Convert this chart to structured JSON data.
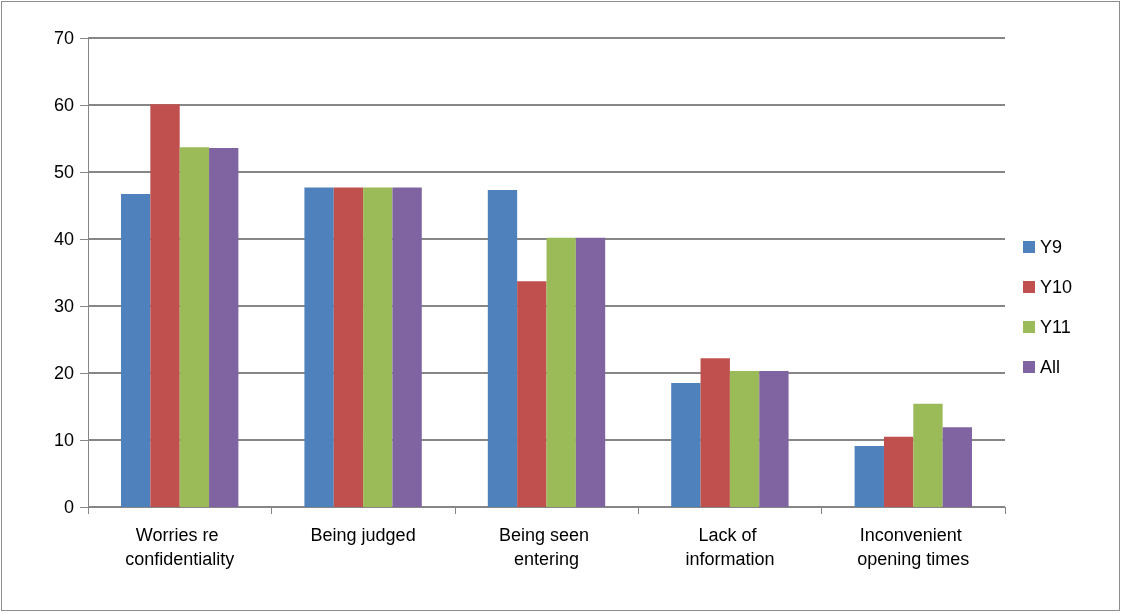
{
  "chart_data": {
    "type": "bar",
    "categories": [
      "Worries re confidentiality",
      "Being judged",
      "Being seen entering",
      "Lack of information",
      "Inconvenient opening times"
    ],
    "series": [
      {
        "name": "Y9",
        "color": "#4f81bd",
        "values": [
          46.7,
          47.7,
          47.3,
          18.5,
          9.1
        ]
      },
      {
        "name": "Y10",
        "color": "#c0504d",
        "values": [
          60.1,
          47.7,
          33.7,
          22.2,
          10.5
        ]
      },
      {
        "name": "Y11",
        "color": "#9bbb59",
        "values": [
          53.7,
          47.7,
          40.2,
          20.3,
          15.4
        ]
      },
      {
        "name": "All",
        "color": "#8064a2",
        "values": [
          53.6,
          47.7,
          40.2,
          20.3,
          11.9
        ]
      }
    ],
    "ylim": [
      0,
      70
    ],
    "yticks": [
      0,
      10,
      20,
      30,
      40,
      50,
      60,
      70
    ],
    "grid": "y",
    "legend": "right"
  }
}
